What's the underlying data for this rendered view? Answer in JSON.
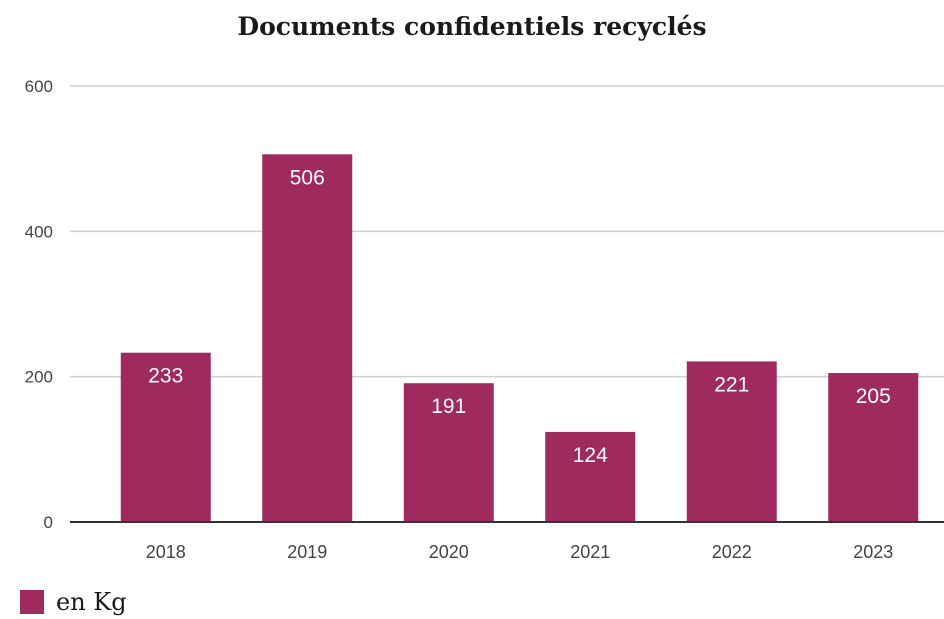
{
  "chart_data": {
    "type": "bar",
    "title": "Documents confidentiels recyclés",
    "categories": [
      "2018",
      "2019",
      "2020",
      "2021",
      "2022",
      "2023"
    ],
    "series": [
      {
        "name": "en Kg",
        "values": [
          233,
          506,
          191,
          124,
          221,
          205
        ]
      }
    ],
    "data_labels": [
      "233",
      "506",
      "191",
      "124",
      "221",
      "205"
    ],
    "y_ticks": [
      0,
      200,
      400,
      600
    ],
    "ylim": [
      0,
      600
    ],
    "xlabel": "",
    "ylabel": "",
    "grid": true,
    "legend_position": "bottom-left",
    "colors": {
      "bar": "#9e2a5e",
      "data_label": "#ffffff",
      "grid": "#cfcfcf",
      "baseline": "#333333",
      "tick_text": "#444444"
    }
  }
}
